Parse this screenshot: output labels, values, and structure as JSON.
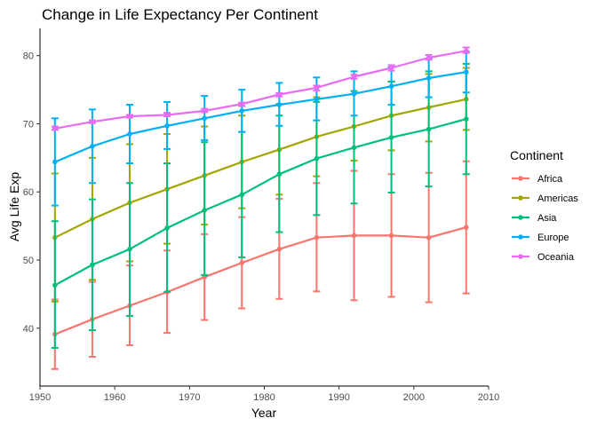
{
  "chart_data": {
    "type": "line",
    "title": "Change in Life Expectancy Per Continent",
    "xlabel": "Year",
    "ylabel": "Avg Life Exp",
    "xlim": [
      1950,
      2010
    ],
    "ylim": [
      31.5,
      84
    ],
    "x_ticks": [
      "1950",
      "1960",
      "1970",
      "1980",
      "1990",
      "2000",
      "2010"
    ],
    "y_ticks": [
      "40",
      "50",
      "60",
      "70",
      "80"
    ],
    "x": [
      1952,
      1957,
      1962,
      1967,
      1972,
      1977,
      1982,
      1987,
      1992,
      1997,
      2002,
      2007
    ],
    "legend": {
      "title": "Continent",
      "position": "right"
    },
    "grid": false,
    "error_bars": true,
    "series": [
      {
        "name": "Africa",
        "color": "#F8766D",
        "values": [
          39.1,
          41.3,
          43.3,
          45.3,
          47.5,
          49.6,
          51.6,
          53.3,
          53.6,
          53.6,
          53.3,
          54.8
        ],
        "lower": [
          34.0,
          35.8,
          37.5,
          39.3,
          41.2,
          42.9,
          44.3,
          45.4,
          44.1,
          44.6,
          43.8,
          45.1
        ],
        "upper": [
          44.2,
          46.8,
          49.2,
          51.4,
          53.8,
          56.3,
          59.0,
          61.3,
          63.1,
          62.6,
          62.8,
          64.5
        ]
      },
      {
        "name": "Americas",
        "color": "#A3A500",
        "values": [
          53.3,
          56.0,
          58.4,
          60.4,
          62.4,
          64.4,
          66.2,
          68.1,
          69.6,
          71.2,
          72.4,
          73.6
        ],
        "lower": [
          43.9,
          47.1,
          49.8,
          52.4,
          55.2,
          57.6,
          59.6,
          62.3,
          64.6,
          66.1,
          67.4,
          69.1
        ],
        "upper": [
          62.7,
          65.0,
          67.0,
          68.5,
          69.6,
          71.2,
          72.9,
          73.9,
          74.8,
          76.2,
          77.3,
          78.2
        ]
      },
      {
        "name": "Asia",
        "color": "#00BF7D",
        "values": [
          46.3,
          49.3,
          51.6,
          54.7,
          57.3,
          59.6,
          62.6,
          64.9,
          66.5,
          68.0,
          69.2,
          70.7
        ],
        "lower": [
          37.1,
          39.7,
          41.8,
          45.3,
          47.8,
          50.4,
          54.1,
          56.6,
          58.3,
          59.9,
          60.8,
          62.6
        ],
        "upper": [
          55.7,
          58.9,
          61.3,
          64.2,
          67.3,
          68.8,
          71.2,
          73.2,
          74.8,
          76.2,
          77.7,
          78.8
        ]
      },
      {
        "name": "Europe",
        "color": "#00B0F6",
        "values": [
          64.4,
          66.7,
          68.5,
          69.7,
          70.8,
          71.9,
          72.8,
          73.6,
          74.4,
          75.5,
          76.7,
          77.6
        ],
        "lower": [
          58.0,
          61.3,
          64.2,
          66.3,
          67.6,
          68.8,
          69.7,
          70.5,
          71.2,
          72.8,
          73.9,
          74.6
        ],
        "upper": [
          70.8,
          72.1,
          72.8,
          73.2,
          74.1,
          75.0,
          76.0,
          76.8,
          77.7,
          78.3,
          79.5,
          80.6
        ]
      },
      {
        "name": "Oceania",
        "color": "#E76BF3",
        "values": [
          69.3,
          70.3,
          71.1,
          71.3,
          71.9,
          72.9,
          74.3,
          75.3,
          76.9,
          78.2,
          79.7,
          80.7
        ],
        "lower": [
          69.1,
          70.1,
          70.9,
          71.1,
          71.7,
          72.6,
          74.0,
          74.9,
          76.6,
          77.8,
          79.4,
          80.4
        ],
        "upper": [
          69.6,
          70.5,
          71.3,
          71.6,
          72.2,
          73.1,
          74.5,
          75.6,
          77.2,
          78.6,
          80.1,
          81.2
        ]
      }
    ]
  }
}
